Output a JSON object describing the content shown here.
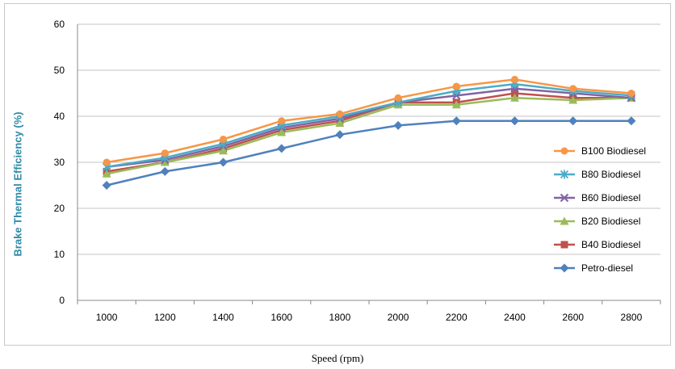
{
  "chart_data": {
    "type": "line",
    "title": "",
    "xlabel": "Speed (rpm)",
    "ylabel": "Brake Thermal Efficiency (%)",
    "ylim": [
      0,
      60
    ],
    "yticks": [
      0,
      10,
      20,
      30,
      40,
      50,
      60
    ],
    "grid": true,
    "legend_position": "right",
    "categories": [
      "1000",
      "1200",
      "1400",
      "1600",
      "1800",
      "2000",
      "2200",
      "2400",
      "2600",
      "2800"
    ],
    "series": [
      {
        "name": "B100 Biodiesel",
        "color": "#f79646",
        "marker": "circle",
        "values": [
          30,
          32,
          35,
          39,
          40.5,
          44,
          46.5,
          48,
          46,
          45
        ]
      },
      {
        "name": "B80 Biodiesel",
        "color": "#4bacc6",
        "marker": "asterisk",
        "values": [
          29,
          31,
          34,
          38,
          40,
          43,
          45.5,
          47,
          45.5,
          44.5
        ]
      },
      {
        "name": "B60 Biodiesel",
        "color": "#8064a2",
        "marker": "x",
        "values": [
          29,
          30.5,
          33.5,
          37.5,
          39.5,
          43,
          44.5,
          46,
          45,
          44
        ]
      },
      {
        "name": "B20 Biodiesel",
        "color": "#9bbb59",
        "marker": "triangle",
        "values": [
          27.5,
          30,
          32.5,
          36.5,
          38.5,
          42.5,
          42.5,
          44,
          43.5,
          44
        ]
      },
      {
        "name": "B40 Biodiesel",
        "color": "#c0504d",
        "marker": "square",
        "values": [
          28,
          30,
          33,
          37,
          39,
          43,
          43,
          45,
          44,
          44
        ]
      },
      {
        "name": "Petro-diesel",
        "color": "#4f81bd",
        "marker": "diamond",
        "values": [
          25,
          28,
          30,
          33,
          36,
          38,
          39,
          39,
          39,
          39
        ]
      }
    ]
  }
}
